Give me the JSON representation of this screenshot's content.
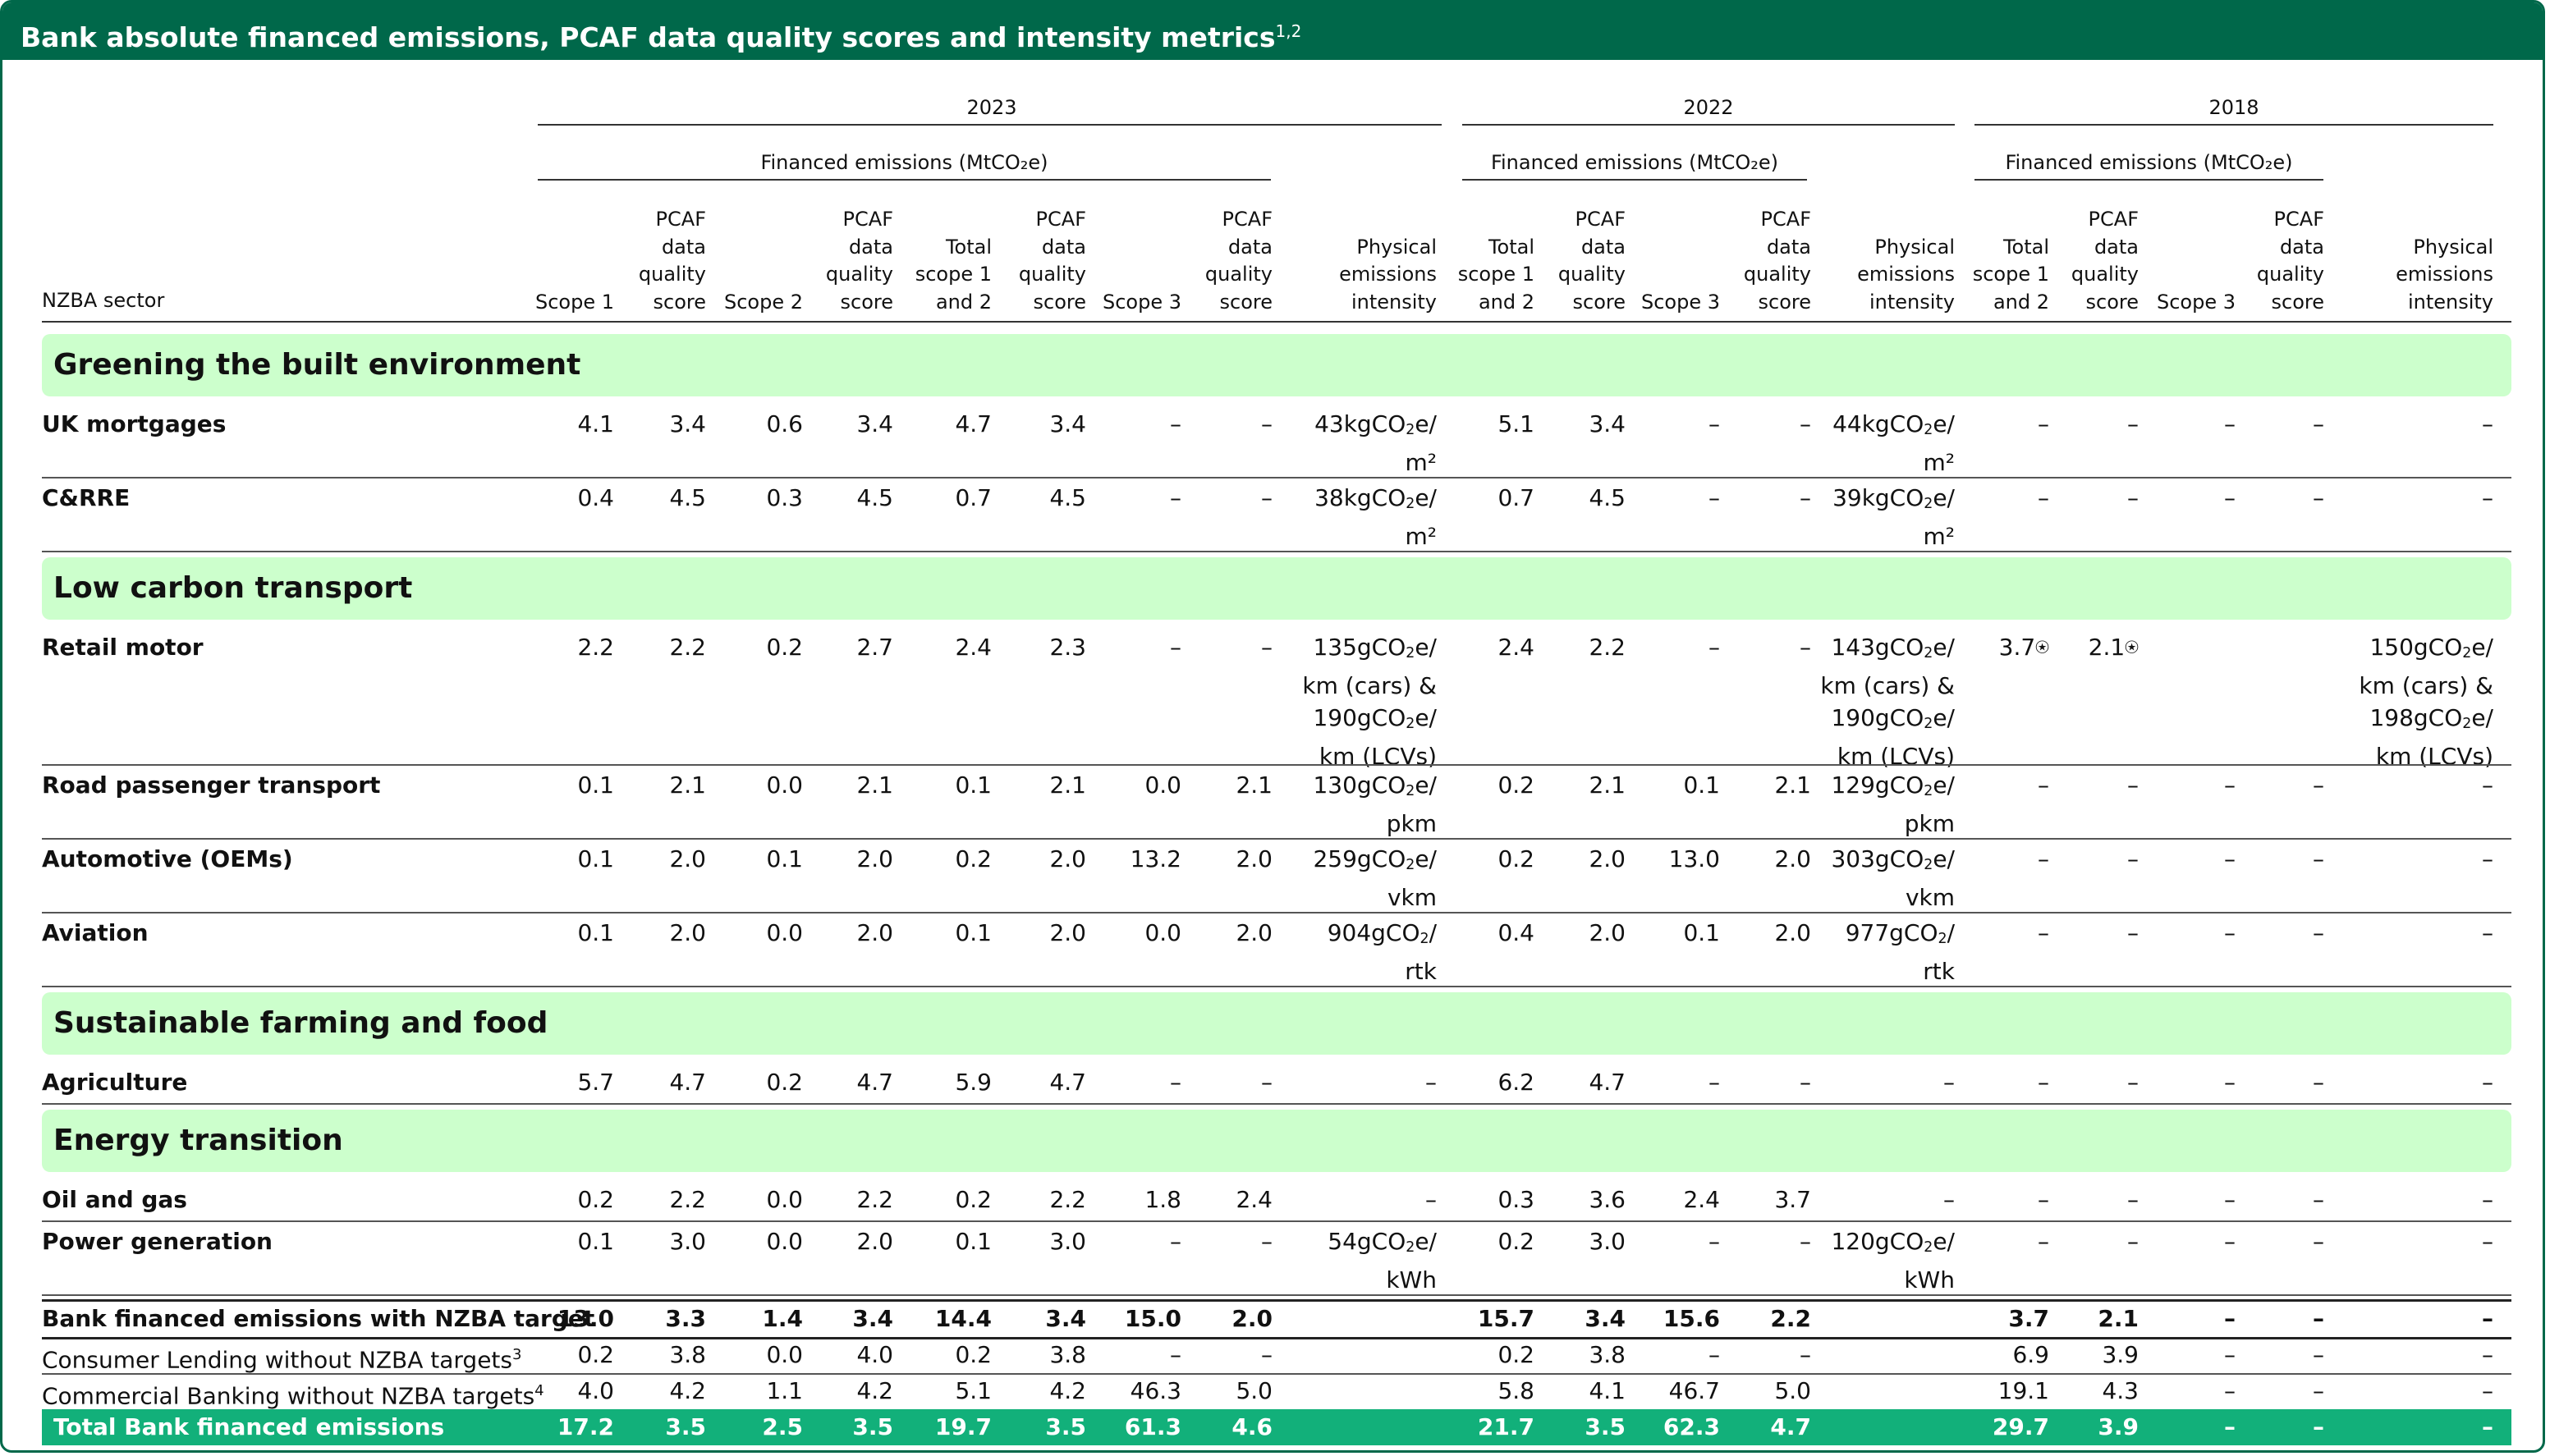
{
  "title": "Bank absolute financed emissions, PCAF data quality scores and intensity metrics",
  "title_footnote": "1,2",
  "years": [
    "2023",
    "2022",
    "2018"
  ],
  "financed_label": "Financed emissions (MtCO₂e)",
  "sector_header": "NZBA sector",
  "columns": [
    "Scope 1",
    "PCAF data quality score",
    "Scope 2",
    "PCAF data quality score",
    "Total scope 1 and 2",
    "PCAF data quality score",
    "Scope 3",
    "PCAF data quality score",
    "Physical emissions intensity",
    "Total scope 1 and 2",
    "PCAF data quality score",
    "Scope 3",
    "PCAF data quality score",
    "Physical emissions intensity",
    "Total scope 1 and 2",
    "PCAF data quality score",
    "Scope 3",
    "PCAF data quality score",
    "Physical emissions intensity"
  ],
  "sections": [
    {
      "name": "Greening the built environment",
      "rows": [
        {
          "name": "UK mortgages",
          "values": [
            "4.1",
            "3.4",
            "0.6",
            "3.4",
            "4.7",
            "3.4",
            "–",
            "–",
            "43kgCO₂e/\nm²",
            "5.1",
            "3.4",
            "–",
            "–",
            "44kgCO₂e/\nm²",
            "–",
            "–",
            "–",
            "–",
            "–"
          ]
        },
        {
          "name": "C&RRE",
          "values": [
            "0.4",
            "4.5",
            "0.3",
            "4.5",
            "0.7",
            "4.5",
            "–",
            "–",
            "38kgCO₂e/\nm²",
            "0.7",
            "4.5",
            "–",
            "–",
            "39kgCO₂e/\nm²",
            "–",
            "–",
            "–",
            "–",
            "–"
          ]
        }
      ]
    },
    {
      "name": "Low carbon transport",
      "rows": [
        {
          "name": "Retail motor",
          "values": [
            "2.2",
            "2.2",
            "0.2",
            "2.7",
            "2.4",
            "2.3",
            "–",
            "–",
            "135gCO₂e/\nkm (cars) &\n190gCO₂e/\nkm (LCVs)",
            "2.4",
            "2.2",
            "–",
            "–",
            "143gCO₂e/\nkm (cars) &\n190gCO₂e/\nkm (LCVs)",
            "3.7⍟",
            "2.1⍟",
            "",
            "",
            "150gCO₂e/\nkm (cars) &\n198gCO₂e/\nkm (LCVs)"
          ]
        },
        {
          "name": "Road passenger transport",
          "values": [
            "0.1",
            "2.1",
            "0.0",
            "2.1",
            "0.1",
            "2.1",
            "0.0",
            "2.1",
            "130gCO₂e/\npkm",
            "0.2",
            "2.1",
            "0.1",
            "2.1",
            "129gCO₂e/\npkm",
            "–",
            "–",
            "–",
            "–",
            "–"
          ]
        },
        {
          "name": "Automotive (OEMs)",
          "values": [
            "0.1",
            "2.0",
            "0.1",
            "2.0",
            "0.2",
            "2.0",
            "13.2",
            "2.0",
            "259gCO₂e/\nvkm",
            "0.2",
            "2.0",
            "13.0",
            "2.0",
            "303gCO₂e/\nvkm",
            "–",
            "–",
            "–",
            "–",
            "–"
          ]
        },
        {
          "name": "Aviation",
          "values": [
            "0.1",
            "2.0",
            "0.0",
            "2.0",
            "0.1",
            "2.0",
            "0.0",
            "2.0",
            "904gCO₂/\nrtk",
            "0.4",
            "2.0",
            "0.1",
            "2.0",
            "977gCO₂/\nrtk",
            "–",
            "–",
            "–",
            "–",
            "–"
          ]
        }
      ]
    },
    {
      "name": "Sustainable farming and food",
      "rows": [
        {
          "name": "Agriculture",
          "values": [
            "5.7",
            "4.7",
            "0.2",
            "4.7",
            "5.9",
            "4.7",
            "–",
            "–",
            "–",
            "6.2",
            "4.7",
            "–",
            "–",
            "–",
            "–",
            "–",
            "–",
            "–",
            "–"
          ]
        }
      ]
    },
    {
      "name": "Energy transition",
      "rows": [
        {
          "name": "Oil and gas",
          "values": [
            "0.2",
            "2.2",
            "0.0",
            "2.2",
            "0.2",
            "2.2",
            "1.8",
            "2.4",
            "–",
            "0.3",
            "3.6",
            "2.4",
            "3.7",
            "–",
            "–",
            "–",
            "–",
            "–",
            "–"
          ]
        },
        {
          "name": "Power generation",
          "values": [
            "0.1",
            "3.0",
            "0.0",
            "2.0",
            "0.1",
            "3.0",
            "–",
            "–",
            "54gCO₂e/\nkWh",
            "0.2",
            "3.0",
            "–",
            "–",
            "120gCO₂e/\nkWh",
            "–",
            "–",
            "–",
            "–",
            "–"
          ]
        }
      ]
    }
  ],
  "summary_rows": [
    {
      "name": "Bank financed emissions with NZBA target",
      "style": "bold",
      "values": [
        "13.0",
        "3.3",
        "1.4",
        "3.4",
        "14.4",
        "3.4",
        "15.0",
        "2.0",
        "",
        "15.7",
        "3.4",
        "15.6",
        "2.2",
        "",
        "3.7",
        "2.1",
        "–",
        "–",
        "–"
      ]
    },
    {
      "name": "Consumer Lending without NZBA targets",
      "footnote": "3",
      "style": "plain",
      "values": [
        "0.2",
        "3.8",
        "0.0",
        "4.0",
        "0.2",
        "3.8",
        "–",
        "–",
        "",
        "0.2",
        "3.8",
        "–",
        "–",
        "",
        "6.9",
        "3.9",
        "–",
        "–",
        "–"
      ]
    },
    {
      "name": "Commercial Banking without NZBA targets",
      "footnote": "4",
      "style": "plain",
      "values": [
        "4.0",
        "4.2",
        "1.1",
        "4.2",
        "5.1",
        "4.2",
        "46.3",
        "5.0",
        "",
        "5.8",
        "4.1",
        "46.7",
        "5.0",
        "",
        "19.1",
        "4.3",
        "–",
        "–",
        "–"
      ]
    },
    {
      "name": "Total Bank financed emissions",
      "style": "total",
      "values": [
        "17.2",
        "3.5",
        "2.5",
        "3.5",
        "19.7",
        "3.5",
        "61.3",
        "4.6",
        "",
        "21.7",
        "3.5",
        "62.3",
        "4.7",
        "",
        "29.7",
        "3.9",
        "–",
        "–",
        "–"
      ]
    }
  ],
  "colors": {
    "brand": "#00684a",
    "sector_band": "#ccffcc",
    "total_row": "#12b07a"
  }
}
